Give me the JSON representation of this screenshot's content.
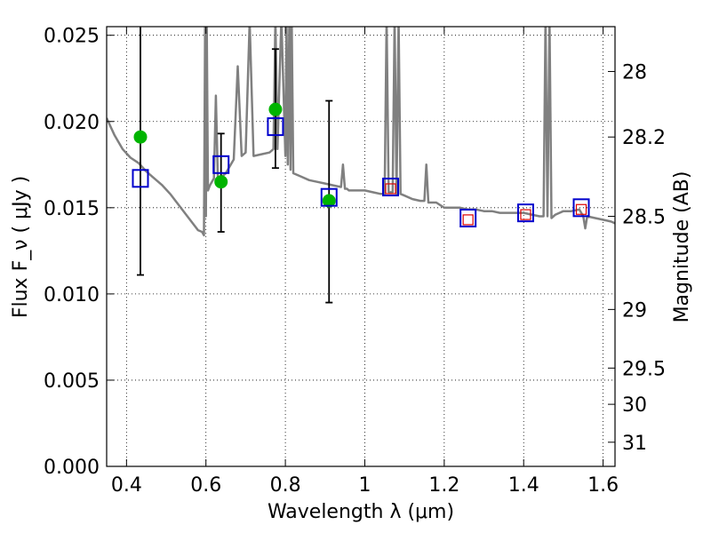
{
  "chart_data": {
    "type": "scatter",
    "xlabel": "Wavelength  λ (μm)",
    "ylabel": "Flux  F_ν  ( μJy )",
    "ylabel_right": "Magnitude (AB)",
    "xlim": [
      0.35,
      1.63
    ],
    "ylim": [
      0.0,
      0.0255
    ],
    "grid": true,
    "x_ticks": [
      0.4,
      0.6,
      0.8,
      1.0,
      1.2,
      1.4,
      1.6
    ],
    "x_tick_labels": [
      "0.4",
      "0.6",
      "0.8",
      "1",
      "1.2",
      "1.4",
      "1.6"
    ],
    "y_ticks": [
      0.0,
      0.005,
      0.01,
      0.015,
      0.02,
      0.025
    ],
    "y_tick_labels": [
      "0.000",
      "0.005",
      "0.010",
      "0.015",
      "0.020",
      "0.025"
    ],
    "right_ticks": [
      {
        "label": "28",
        "flux": 0.0229
      },
      {
        "label": "28.2",
        "flux": 0.0191
      },
      {
        "label": "28.5",
        "flux": 0.0145
      },
      {
        "label": "29",
        "flux": 0.0091
      },
      {
        "label": "29.5",
        "flux": 0.0057
      },
      {
        "label": "30",
        "flux": 0.0036
      },
      {
        "label": "31",
        "flux": 0.0014
      }
    ],
    "series": [
      {
        "kind": "spectrum",
        "color": "#808080",
        "x": [
          0.35,
          0.37,
          0.39,
          0.41,
          0.43,
          0.45,
          0.47,
          0.49,
          0.51,
          0.53,
          0.55,
          0.57,
          0.58,
          0.59,
          0.595,
          0.598,
          0.6,
          0.602,
          0.605,
          0.61,
          0.62,
          0.625,
          0.63,
          0.64,
          0.65,
          0.655,
          0.66,
          0.67,
          0.68,
          0.69,
          0.7,
          0.71,
          0.72,
          0.74,
          0.76,
          0.77,
          0.775,
          0.78,
          0.79,
          0.8,
          0.803,
          0.806,
          0.81,
          0.813,
          0.816,
          0.82,
          0.84,
          0.86,
          0.88,
          0.9,
          0.92,
          0.94,
          0.945,
          0.95,
          0.955,
          0.96,
          0.98,
          1.0,
          1.02,
          1.04,
          1.05,
          1.055,
          1.06,
          1.07,
          1.075,
          1.08,
          1.085,
          1.09,
          1.1,
          1.12,
          1.14,
          1.15,
          1.155,
          1.16,
          1.18,
          1.2,
          1.22,
          1.24,
          1.26,
          1.28,
          1.3,
          1.32,
          1.34,
          1.36,
          1.38,
          1.4,
          1.42,
          1.44,
          1.45,
          1.455,
          1.46,
          1.465,
          1.47,
          1.48,
          1.5,
          1.52,
          1.54,
          1.55,
          1.555,
          1.56,
          1.58,
          1.6,
          1.62,
          1.63
        ],
        "y": [
          0.0202,
          0.0192,
          0.0184,
          0.0179,
          0.0176,
          0.0171,
          0.0167,
          0.0163,
          0.0158,
          0.0152,
          0.0146,
          0.014,
          0.0137,
          0.0136,
          0.0134,
          0.026,
          0.0145,
          0.026,
          0.016,
          0.0163,
          0.0167,
          0.0215,
          0.0167,
          0.0168,
          0.017,
          0.0172,
          0.0174,
          0.0178,
          0.0232,
          0.018,
          0.0182,
          0.0258,
          0.018,
          0.0181,
          0.0182,
          0.0184,
          0.026,
          0.0184,
          0.026,
          0.018,
          0.026,
          0.0175,
          0.026,
          0.0172,
          0.026,
          0.017,
          0.0168,
          0.0166,
          0.0165,
          0.0164,
          0.0163,
          0.0162,
          0.0175,
          0.0161,
          0.0161,
          0.016,
          0.016,
          0.016,
          0.0159,
          0.0158,
          0.0158,
          0.026,
          0.0159,
          0.0159,
          0.026,
          0.0158,
          0.026,
          0.0158,
          0.0157,
          0.0155,
          0.0154,
          0.0154,
          0.0175,
          0.0153,
          0.0153,
          0.015,
          0.015,
          0.015,
          0.0149,
          0.0149,
          0.0148,
          0.0148,
          0.0147,
          0.0147,
          0.0147,
          0.0147,
          0.0146,
          0.0145,
          0.0145,
          0.026,
          0.0145,
          0.026,
          0.0144,
          0.0146,
          0.0148,
          0.0148,
          0.0149,
          0.0145,
          0.0138,
          0.0145,
          0.0144,
          0.0143,
          0.0142,
          0.0141
        ]
      },
      {
        "kind": "observed",
        "color": "#00b400",
        "marker": "circle",
        "points": [
          {
            "x": 0.435,
            "y": 0.0191,
            "err_low": 0.0111,
            "err_high": 0.0255
          },
          {
            "x": 0.638,
            "y": 0.0165,
            "err_low": 0.0136,
            "err_high": 0.0193
          },
          {
            "x": 0.775,
            "y": 0.0207,
            "err_low": 0.0173,
            "err_high": 0.0242
          },
          {
            "x": 0.91,
            "y": 0.0154,
            "err_low": 0.0095,
            "err_high": 0.0212
          }
        ]
      },
      {
        "kind": "model",
        "color": "#0000cc",
        "marker": "square",
        "points": [
          {
            "x": 0.435,
            "y": 0.0167
          },
          {
            "x": 0.638,
            "y": 0.0175
          },
          {
            "x": 0.775,
            "y": 0.0197
          },
          {
            "x": 0.91,
            "y": 0.0156
          },
          {
            "x": 1.065,
            "y": 0.0162
          },
          {
            "x": 1.26,
            "y": 0.0144
          },
          {
            "x": 1.405,
            "y": 0.0147
          },
          {
            "x": 1.545,
            "y": 0.015
          }
        ]
      },
      {
        "kind": "observed-nir",
        "color": "#dd0000",
        "marker": "square-small",
        "points": [
          {
            "x": 1.065,
            "y": 0.0161
          },
          {
            "x": 1.26,
            "y": 0.0143
          },
          {
            "x": 1.405,
            "y": 0.0146
          },
          {
            "x": 1.545,
            "y": 0.0149
          }
        ]
      }
    ]
  }
}
